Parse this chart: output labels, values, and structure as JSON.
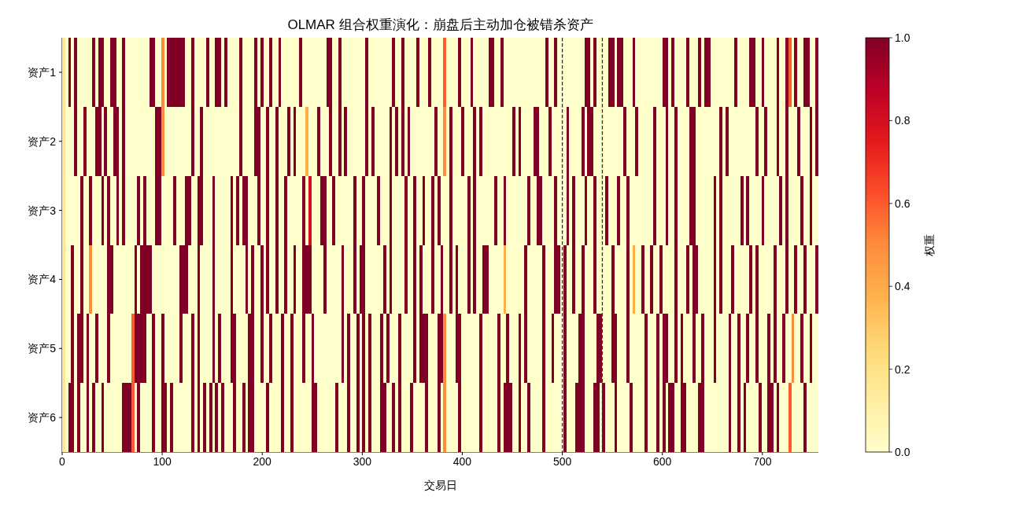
{
  "chart_data": {
    "type": "heatmap",
    "title": "OLMAR 组合权重演化：崩盘后主动加仓被错杀资产",
    "xlabel": "交易日",
    "clabel": "权重",
    "xlim": [
      0,
      756
    ],
    "xticks": [
      0,
      100,
      200,
      300,
      400,
      500,
      600,
      700
    ],
    "clim": [
      0,
      1
    ],
    "cticks": [
      {
        "value": 0,
        "label": "0.0"
      },
      {
        "value": 0.2,
        "label": "0.2"
      },
      {
        "value": 0.4,
        "label": "0.4"
      },
      {
        "value": 0.6,
        "label": "0.6"
      },
      {
        "value": 0.8,
        "label": "0.8"
      },
      {
        "value": 1,
        "label": "1.0"
      }
    ],
    "ref_lines": [
      {
        "axis": "x",
        "value": 500,
        "color": "#333333",
        "line_style": "dashed"
      },
      {
        "axis": "x",
        "value": 540,
        "color": "#333333",
        "line_style": "dashed"
      }
    ],
    "y_categories": [
      "资产1",
      "资产2",
      "资产3",
      "资产4",
      "资产5",
      "资产6"
    ],
    "x": [
      1.5,
      4.5,
      7.5,
      10.5,
      13.5,
      16.5,
      19.5,
      22.5,
      25.5,
      28.5,
      31.5,
      34.5,
      37.5,
      40.5,
      43.5,
      46.5,
      49.5,
      52.5,
      55.5,
      58.5,
      61.5,
      64.5,
      67.5,
      70.5,
      73.5,
      76.5,
      79.5,
      82.5,
      85.5,
      88.5,
      91.5,
      94.5,
      97.5,
      100.5,
      103.5,
      106.5,
      109.5,
      112.5,
      115.5,
      118.5,
      121.5,
      124.5,
      127.5,
      130.5,
      133.5,
      136.5,
      139.5,
      142.5,
      145.5,
      148.5,
      151.5,
      154.5,
      157.5,
      160.5,
      163.5,
      166.5,
      169.5,
      172.5,
      175.5,
      178.5,
      181.5,
      184.5,
      187.5,
      190.5,
      193.5,
      196.5,
      199.5,
      202.5,
      205.5,
      208.5,
      211.5,
      214.5,
      217.5,
      220.5,
      223.5,
      226.5,
      229.5,
      232.5,
      235.5,
      238.5,
      241.5,
      244.5,
      247.5,
      250.5,
      253.5,
      256.5,
      259.5,
      262.5,
      265.5,
      268.5,
      271.5,
      274.5,
      277.5,
      280.5,
      283.5,
      286.5,
      289.5,
      292.5,
      295.5,
      298.5,
      301.5,
      304.5,
      307.5,
      310.5,
      313.5,
      316.5,
      319.5,
      322.5,
      325.5,
      328.5,
      331.5,
      334.5,
      337.5,
      340.5,
      343.5,
      346.5,
      349.5,
      352.5,
      355.5,
      358.5,
      361.5,
      364.5,
      367.5,
      370.5,
      373.5,
      376.5,
      379.5,
      382.5,
      385.5,
      388.5,
      391.5,
      394.5,
      397.5,
      400.5,
      403.5,
      406.5,
      409.5,
      412.5,
      415.5,
      418.5,
      421.5,
      424.5,
      427.5,
      430.5,
      433.5,
      436.5,
      439.5,
      442.5,
      445.5,
      448.5,
      451.5,
      454.5,
      457.5,
      460.5,
      463.5,
      466.5,
      469.5,
      472.5,
      475.5,
      478.5,
      481.5,
      484.5,
      487.5,
      490.5,
      493.5,
      496.5,
      499.5,
      502.5,
      505.5,
      508.5,
      511.5,
      514.5,
      517.5,
      520.5,
      523.5,
      526.5,
      529.5,
      532.5,
      535.5,
      538.5,
      541.5,
      544.5,
      547.5,
      550.5,
      553.5,
      556.5,
      559.5,
      562.5,
      565.5,
      568.5,
      571.5,
      574.5,
      577.5,
      580.5,
      583.5,
      586.5,
      589.5,
      592.5,
      595.5,
      598.5,
      601.5,
      604.5,
      607.5,
      610.5,
      613.5,
      616.5,
      619.5,
      622.5,
      625.5,
      628.5,
      631.5,
      634.5,
      637.5,
      640.5,
      643.5,
      646.5,
      649.5,
      652.5,
      655.5,
      658.5,
      661.5,
      664.5,
      667.5,
      670.5,
      673.5,
      676.5,
      679.5,
      682.5,
      685.5,
      688.5,
      691.5,
      694.5,
      697.5,
      700.5,
      703.5,
      706.5,
      709.5,
      712.5,
      715.5,
      718.5,
      721.5,
      724.5,
      727.5,
      730.5,
      733.5,
      736.5,
      739.5,
      742.5,
      745.5,
      748.5,
      751.5,
      754.5
    ],
    "cells": [
      [
        0.15,
        0,
        1,
        0,
        1,
        0,
        0,
        0,
        0,
        0,
        1,
        0,
        1,
        1,
        0,
        0,
        1,
        1,
        0,
        0,
        1,
        0,
        0,
        0,
        0,
        0,
        0,
        0,
        0,
        1,
        1,
        0,
        0,
        0.5,
        0,
        1,
        1,
        1,
        1,
        1,
        1,
        0,
        0,
        1,
        0,
        0,
        0,
        0,
        1,
        0,
        0,
        1,
        1,
        0,
        1,
        0,
        0,
        0,
        0,
        1,
        0,
        0,
        0,
        0,
        1,
        0,
        1,
        0,
        0,
        1,
        0,
        0,
        1,
        0,
        0,
        0,
        0,
        0,
        0,
        1,
        0,
        0,
        0,
        0,
        0,
        0,
        0,
        0,
        1,
        1,
        0,
        0,
        1,
        0,
        0,
        0,
        0,
        0,
        0,
        0,
        0,
        1,
        0,
        0,
        0,
        0,
        0,
        0,
        0,
        0,
        1,
        0,
        0,
        1,
        0,
        0,
        0,
        0,
        1,
        0,
        0,
        0,
        1,
        0,
        0,
        0,
        0,
        0.6,
        0,
        0,
        0,
        0,
        1,
        0,
        0,
        0,
        1,
        0,
        0,
        0,
        0,
        0,
        1,
        1,
        0,
        0,
        1,
        0,
        0,
        0,
        0,
        0,
        0,
        0,
        0,
        0,
        0,
        0,
        0,
        0,
        0,
        1,
        0,
        0,
        1,
        0,
        0,
        0,
        0,
        0,
        0,
        0,
        0,
        0,
        1,
        1,
        0,
        1,
        0,
        0,
        0,
        0,
        1,
        1,
        0,
        1,
        1,
        0,
        0,
        0,
        1,
        0,
        0,
        0,
        0,
        0,
        0,
        0,
        0,
        0,
        1,
        1,
        0,
        1,
        0,
        0,
        0,
        0,
        1,
        0,
        0,
        0,
        1,
        0,
        1,
        1,
        0,
        0,
        0,
        0,
        0,
        0,
        0,
        0,
        1,
        0,
        0,
        0,
        0,
        1,
        1,
        0,
        0,
        1,
        0,
        0,
        0,
        0,
        1,
        0,
        0,
        1,
        0.6,
        0,
        1,
        0,
        0,
        1,
        1,
        0,
        0,
        1
      ],
      [
        0.15,
        0,
        0,
        0,
        1,
        0,
        0,
        1,
        0,
        0,
        0,
        1,
        1,
        0,
        1,
        0,
        0,
        1,
        1,
        0,
        1,
        0,
        0,
        0,
        0,
        0,
        0,
        0,
        0,
        0,
        0,
        1,
        1,
        0.5,
        0,
        0,
        0,
        0,
        0,
        0,
        0,
        0,
        0,
        1,
        0,
        0,
        1,
        0,
        0,
        0,
        0,
        0,
        0,
        0,
        0,
        0,
        0,
        0,
        0,
        1,
        0,
        0,
        0,
        0,
        1,
        1,
        0,
        0,
        1,
        0,
        0,
        1,
        0,
        0,
        0,
        1,
        0,
        1,
        0,
        0,
        0,
        0.4,
        0,
        0,
        0,
        1,
        0,
        0,
        0,
        1,
        0,
        0,
        1,
        0,
        1,
        0,
        0,
        0,
        0,
        0,
        0,
        1,
        0,
        1,
        0,
        0,
        0,
        0,
        0,
        1,
        0,
        1,
        0,
        1,
        0,
        1,
        0,
        0,
        0,
        0,
        0,
        0,
        0,
        0,
        1,
        0,
        0,
        0.5,
        0,
        1,
        0,
        0,
        0,
        1,
        0,
        0,
        0,
        1,
        0,
        1,
        0,
        0,
        0,
        0,
        0,
        0,
        0,
        0,
        0,
        0,
        1,
        0,
        1,
        0,
        0,
        0,
        0,
        1,
        1,
        0,
        0,
        0,
        1,
        0,
        0,
        0,
        0,
        0,
        1,
        0,
        0,
        0,
        0,
        1,
        0,
        1,
        1,
        0,
        0,
        0,
        0,
        0,
        0,
        0,
        0,
        0,
        0,
        1,
        0,
        0,
        0,
        1,
        0,
        0,
        0,
        0,
        0,
        1,
        0,
        0,
        0,
        1,
        0,
        0,
        1,
        0,
        0,
        0,
        0,
        1,
        1,
        0,
        0,
        0,
        0,
        0,
        0,
        0,
        0,
        1,
        0,
        1,
        0,
        0,
        0,
        0,
        0,
        0,
        0,
        0,
        0,
        1,
        0,
        0,
        1,
        0,
        0,
        0,
        1,
        0,
        0,
        1,
        0,
        0,
        0,
        1,
        0,
        0,
        0,
        1,
        0,
        1
      ],
      [
        0.15,
        0,
        0,
        0,
        0,
        0,
        1,
        0,
        0,
        1,
        0,
        0,
        0,
        1,
        0,
        1,
        0,
        0,
        1,
        0,
        1,
        0,
        0,
        0,
        0,
        1,
        0,
        1,
        0,
        0,
        0,
        1,
        1,
        0,
        0,
        0,
        0,
        1,
        0,
        0,
        0,
        1,
        1,
        0,
        0,
        1,
        1,
        0,
        0,
        0,
        1,
        0,
        0,
        0,
        0,
        0,
        1,
        0,
        1,
        0,
        1,
        1,
        0,
        0,
        0,
        1,
        0,
        0,
        1,
        0,
        0,
        1,
        0,
        0,
        1,
        0,
        0,
        0,
        0,
        0,
        1,
        0,
        0.8,
        0,
        0,
        0,
        1,
        1,
        0,
        0,
        1,
        0,
        0,
        0,
        0,
        0,
        0,
        1,
        0,
        0,
        1,
        0,
        0,
        0,
        0,
        1,
        0,
        0,
        0,
        1,
        0,
        0,
        0,
        0,
        1,
        0,
        0,
        1,
        0,
        0,
        1,
        0,
        0,
        1,
        0,
        1,
        0,
        0,
        0,
        1,
        0,
        0,
        0,
        0,
        0,
        1,
        0,
        1,
        0,
        0,
        0,
        0,
        0,
        0,
        1,
        0,
        0,
        1,
        0,
        0,
        0,
        0,
        0,
        0,
        0,
        1,
        0,
        0,
        1,
        1,
        0,
        0,
        0,
        0,
        1,
        0,
        0,
        0,
        1,
        0,
        1,
        0,
        0,
        0,
        1,
        0,
        0,
        1,
        0,
        0,
        0,
        1,
        0,
        0,
        0,
        1,
        0,
        0,
        1,
        0,
        0,
        0,
        0,
        0,
        0,
        0,
        0,
        1,
        0,
        0,
        0,
        1,
        0,
        0,
        1,
        0,
        0,
        0,
        0,
        1,
        1,
        0,
        0,
        0,
        0,
        0,
        0,
        1,
        0,
        1,
        0,
        0,
        0,
        0,
        0,
        0,
        1,
        0,
        1,
        0,
        0,
        0,
        0,
        1,
        0,
        0,
        0,
        0,
        0,
        1,
        0,
        1,
        0,
        0,
        0,
        0,
        1,
        0,
        0,
        1,
        0,
        0
      ],
      [
        0.15,
        0,
        0,
        1,
        0,
        0,
        1,
        0,
        0,
        0.5,
        0,
        0,
        0,
        0,
        0,
        1,
        1,
        0,
        0,
        0,
        0,
        0,
        0,
        0,
        1,
        0,
        1,
        1,
        1,
        1,
        0,
        0,
        0,
        0,
        0,
        0,
        0,
        0,
        0,
        1,
        1,
        1,
        0,
        0,
        0,
        1,
        0,
        0,
        0,
        0,
        1,
        0,
        0,
        0,
        0,
        0,
        1,
        0,
        0,
        0,
        0,
        1,
        0,
        1,
        0,
        0,
        1,
        0,
        1,
        0,
        0,
        1,
        0,
        0,
        1,
        0,
        0,
        1,
        0,
        0,
        1,
        1,
        1,
        0,
        0,
        0,
        0,
        1,
        0,
        0,
        0,
        0,
        0,
        1,
        0,
        0,
        0,
        1,
        0,
        1,
        1,
        0,
        0,
        0,
        0,
        0,
        0,
        1,
        0,
        1,
        0,
        0,
        0,
        0,
        1,
        0,
        0,
        1,
        0,
        1,
        0,
        0,
        0,
        1,
        0,
        0,
        1,
        0,
        0,
        1,
        0,
        1,
        0,
        0,
        0,
        1,
        0,
        1,
        0,
        0,
        1,
        1,
        0,
        0,
        0,
        0,
        0,
        0.4,
        0,
        0,
        0,
        0,
        0,
        0,
        1,
        0,
        0,
        0,
        0,
        0,
        1,
        0,
        0,
        0,
        1,
        1,
        0,
        1,
        0,
        0,
        1,
        0,
        0,
        1,
        0,
        0,
        0,
        1,
        0,
        0,
        0,
        0,
        0,
        1,
        0,
        0,
        0,
        0,
        1,
        0,
        0.4,
        0,
        0,
        1,
        0,
        0,
        1,
        0,
        0,
        1,
        0,
        0,
        0,
        0,
        1,
        0,
        0,
        0,
        1,
        0,
        1,
        1,
        0,
        0,
        0,
        0,
        0,
        1,
        0,
        1,
        0,
        0,
        0,
        1,
        0,
        0,
        0,
        0,
        0,
        1,
        0,
        1,
        0,
        0,
        0,
        0,
        0,
        1,
        0,
        0,
        0,
        1,
        0,
        0,
        1,
        0,
        0,
        1,
        0,
        0,
        0,
        1
      ],
      [
        0.15,
        0,
        0,
        1,
        0,
        1,
        1,
        0,
        1,
        0,
        0,
        1,
        0,
        0,
        0,
        1,
        0,
        0,
        0,
        0,
        0,
        0,
        0,
        0.6,
        1,
        1,
        1,
        1,
        0,
        0,
        1,
        0,
        0,
        1,
        0,
        0,
        0,
        0,
        0,
        1,
        0,
        0,
        0,
        1,
        0,
        1,
        0,
        0,
        0,
        0,
        1,
        0,
        1,
        0,
        0,
        0,
        1,
        1,
        0,
        0,
        0,
        0,
        1,
        1,
        0,
        0,
        1,
        0,
        0,
        1,
        0,
        0,
        0,
        1,
        0,
        0,
        1,
        0,
        0,
        0,
        1,
        0,
        0,
        1,
        0,
        0,
        0,
        0,
        0,
        0,
        0,
        0,
        0,
        1,
        0,
        1,
        0,
        0,
        1,
        0,
        1,
        0,
        1,
        0,
        0,
        0,
        1,
        0,
        1,
        0,
        0,
        0,
        1,
        0,
        0,
        0,
        0,
        1,
        0,
        1,
        1,
        1,
        0,
        0,
        0,
        1,
        1,
        0.5,
        0,
        0,
        0,
        1,
        1,
        0,
        0,
        0,
        0,
        0,
        0,
        1,
        0,
        0,
        0,
        0,
        0,
        1,
        0,
        0,
        1,
        0,
        0,
        0,
        1,
        0,
        1,
        0,
        0,
        0,
        0,
        0,
        1,
        0,
        0,
        1,
        0,
        0,
        0,
        1,
        0,
        0,
        0,
        0,
        1,
        1,
        0,
        0,
        0,
        0,
        1,
        1,
        0,
        0,
        0,
        1,
        1,
        0,
        0,
        0,
        1,
        0,
        0,
        0,
        0,
        0,
        1,
        0,
        0,
        0,
        1,
        0,
        1,
        1,
        0,
        0,
        1,
        0,
        1,
        0,
        0,
        0,
        1,
        0,
        0,
        1,
        0,
        0,
        0,
        1,
        0,
        0,
        0,
        0,
        1,
        0,
        0,
        1,
        0,
        0,
        1,
        0,
        0,
        1,
        0,
        0,
        0,
        1,
        0,
        1,
        0,
        0,
        1,
        0,
        0,
        0.5,
        0,
        0,
        1,
        0,
        0,
        1,
        0,
        0
      ],
      [
        0.15,
        0,
        1,
        1,
        0,
        1,
        0,
        0,
        1,
        0,
        1,
        0,
        0,
        1,
        0,
        0,
        0,
        0,
        0,
        0,
        1,
        1,
        1,
        0.6,
        0,
        1,
        0,
        0,
        0,
        0,
        1,
        0,
        0,
        1,
        1,
        0,
        1,
        0,
        0,
        0,
        0,
        0,
        0,
        1,
        0,
        1,
        0,
        1,
        0,
        1,
        0,
        1,
        0,
        1,
        0,
        0,
        0,
        1,
        0,
        0,
        1,
        0,
        1,
        1,
        0,
        0,
        0,
        0,
        1,
        0,
        0,
        0,
        0,
        1,
        0,
        0,
        1,
        0,
        0,
        0,
        0,
        0,
        0,
        1,
        1,
        0,
        0,
        0,
        0,
        0,
        0,
        1,
        0,
        0,
        0,
        1,
        0,
        0,
        1,
        0,
        1,
        0,
        1,
        0,
        0,
        0,
        1,
        1,
        0,
        0,
        1,
        0,
        1,
        0,
        0,
        0,
        1,
        0,
        0,
        0,
        0,
        1,
        0,
        0,
        0,
        1,
        0,
        0.5,
        0,
        0,
        0,
        0,
        1,
        0,
        0,
        0,
        0,
        0,
        0,
        1,
        0,
        0,
        0,
        0,
        0,
        1,
        0,
        1,
        1,
        1,
        0,
        0,
        1,
        0,
        0,
        1,
        0,
        0,
        0,
        0,
        1,
        0,
        0,
        0,
        0,
        0,
        0,
        1,
        0,
        0,
        0,
        1,
        1,
        1,
        0,
        0,
        0,
        1,
        1,
        0,
        1,
        0,
        0,
        0,
        1,
        0,
        0,
        0,
        0,
        1,
        0,
        0,
        0,
        0,
        1,
        0,
        0,
        0,
        1,
        0,
        1,
        0,
        1,
        1,
        0,
        0,
        1,
        1,
        0,
        0,
        0,
        0,
        1,
        1,
        0,
        0,
        0,
        0,
        0,
        0,
        0,
        0,
        1,
        0,
        0,
        1,
        0,
        1,
        0,
        0,
        0,
        0,
        1,
        0,
        0,
        1,
        1,
        0,
        1,
        0,
        0,
        0,
        0.6,
        0,
        0,
        0,
        0,
        1,
        0,
        0,
        0,
        0
      ]
    ]
  }
}
